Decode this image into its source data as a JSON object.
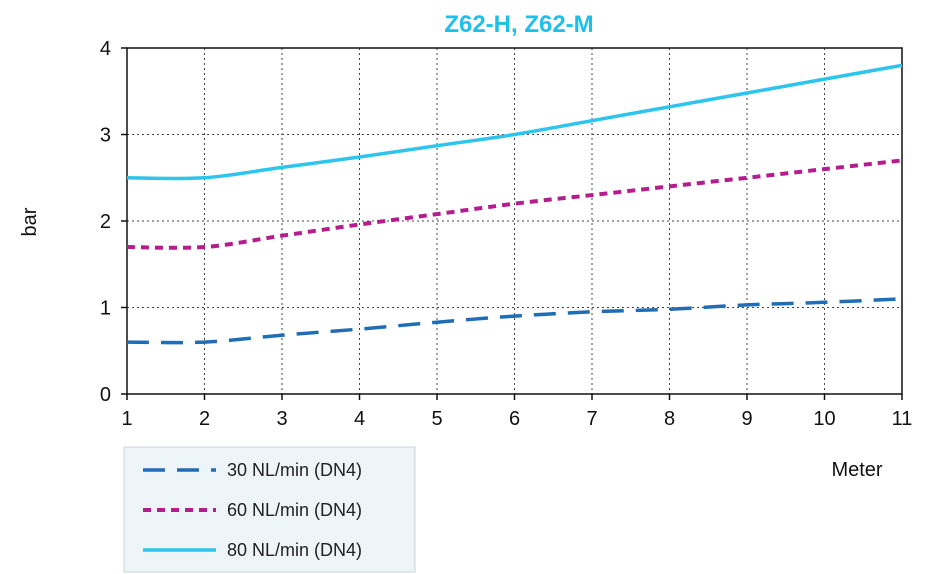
{
  "chart_data": {
    "type": "line",
    "title": "Z62-H, Z62-M",
    "title_color": "#1EC0EA",
    "xlabel": "Meter",
    "ylabel": "bar",
    "x": [
      1,
      2,
      3,
      4,
      5,
      6,
      7,
      8,
      9,
      10,
      11
    ],
    "xlim": [
      1,
      11
    ],
    "ylim": [
      0,
      4
    ],
    "xticks": [
      "1",
      "2",
      "3",
      "4",
      "5",
      "6",
      "7",
      "8",
      "9",
      "10",
      "11"
    ],
    "yticks": [
      "0",
      "1",
      "2",
      "3",
      "4"
    ],
    "grid": true,
    "legend_position": "bottom-left",
    "series": [
      {
        "name": "30 NL/min (DN4)",
        "color": "#1F6DB5",
        "style": "long-dash",
        "values": [
          0.6,
          0.6,
          0.68,
          0.75,
          0.83,
          0.9,
          0.95,
          0.98,
          1.03,
          1.06,
          1.1
        ]
      },
      {
        "name": "60 NL/min (DN4)",
        "color": "#B51C8E",
        "style": "short-dash",
        "values": [
          1.7,
          1.7,
          1.83,
          1.96,
          2.08,
          2.2,
          2.3,
          2.4,
          2.5,
          2.6,
          2.7
        ]
      },
      {
        "name": "80 NL/min (DN4)",
        "color": "#2DC4EE",
        "style": "solid",
        "values": [
          2.5,
          2.5,
          2.62,
          2.74,
          2.87,
          3.0,
          3.16,
          3.32,
          3.48,
          3.64,
          3.8
        ]
      }
    ]
  }
}
